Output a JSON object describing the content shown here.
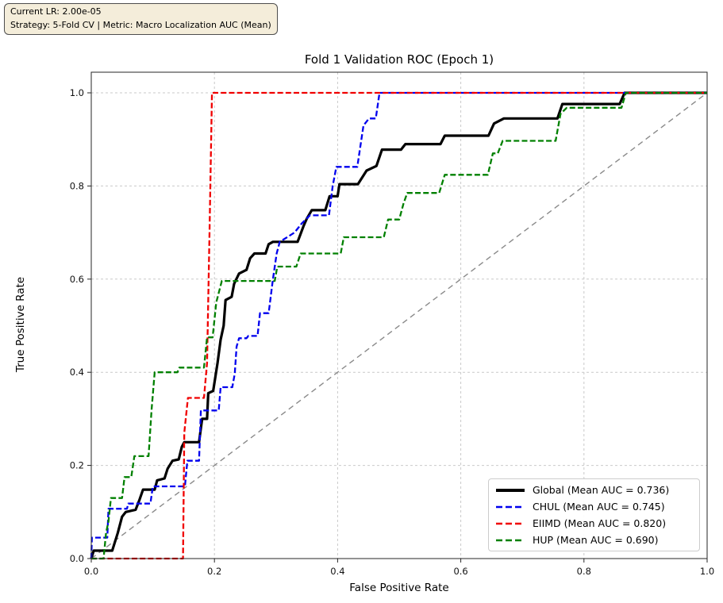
{
  "annotation": {
    "line1": "Current LR: 2.00e-05",
    "line2": "Strategy: 5-Fold CV | Metric: Macro Localization AUC (Mean)",
    "bg_color": "#f4edda",
    "border_color": "#4d4d4d"
  },
  "chart_data": {
    "type": "line",
    "subtype": "roc-step-curves",
    "title": "Fold 1 Validation ROC (Epoch 1)",
    "xlabel": "False Positive Rate",
    "ylabel": "True Positive Rate",
    "xlim": [
      0.0,
      1.0
    ],
    "ylim": [
      0.0,
      1.045
    ],
    "xticks": [
      0.0,
      0.2,
      0.4,
      0.6,
      0.8,
      1.0
    ],
    "yticks": [
      0.0,
      0.2,
      0.4,
      0.6,
      0.8,
      1.0
    ],
    "xtick_labels": [
      "0.0",
      "0.2",
      "0.4",
      "0.6",
      "0.8",
      "1.0"
    ],
    "ytick_labels": [
      "0.0",
      "0.2",
      "0.4",
      "0.6",
      "0.8",
      "1.0"
    ],
    "grid": true,
    "grid_color": "#c9c9c9",
    "spine_color": "#262626",
    "legend_position": "lower right",
    "chance_line": {
      "name": "chance-diagonal",
      "points": [
        [
          0,
          0
        ],
        [
          1,
          1
        ]
      ],
      "color": "#8a8a8a",
      "style": "dashed",
      "width": 1.4
    },
    "series": [
      {
        "name": "Global",
        "label": "Global (Mean AUC = 0.736)",
        "mean_auc": 0.736,
        "color": "#000000",
        "style": "solid",
        "width": 3.2,
        "points": [
          [
            0,
            0
          ],
          [
            0.004,
            0.017
          ],
          [
            0.034,
            0.017
          ],
          [
            0.043,
            0.055
          ],
          [
            0.05,
            0.09
          ],
          [
            0.056,
            0.1
          ],
          [
            0.072,
            0.105
          ],
          [
            0.078,
            0.125
          ],
          [
            0.084,
            0.148
          ],
          [
            0.103,
            0.148
          ],
          [
            0.107,
            0.168
          ],
          [
            0.119,
            0.172
          ],
          [
            0.124,
            0.193
          ],
          [
            0.132,
            0.21
          ],
          [
            0.142,
            0.213
          ],
          [
            0.147,
            0.24
          ],
          [
            0.151,
            0.25
          ],
          [
            0.175,
            0.25
          ],
          [
            0.18,
            0.3
          ],
          [
            0.188,
            0.3
          ],
          [
            0.19,
            0.355
          ],
          [
            0.198,
            0.36
          ],
          [
            0.205,
            0.42
          ],
          [
            0.21,
            0.47
          ],
          [
            0.215,
            0.5
          ],
          [
            0.218,
            0.555
          ],
          [
            0.228,
            0.562
          ],
          [
            0.232,
            0.59
          ],
          [
            0.24,
            0.612
          ],
          [
            0.252,
            0.62
          ],
          [
            0.258,
            0.645
          ],
          [
            0.265,
            0.655
          ],
          [
            0.283,
            0.655
          ],
          [
            0.288,
            0.675
          ],
          [
            0.295,
            0.68
          ],
          [
            0.335,
            0.68
          ],
          [
            0.345,
            0.715
          ],
          [
            0.35,
            0.73
          ],
          [
            0.358,
            0.748
          ],
          [
            0.38,
            0.748
          ],
          [
            0.387,
            0.778
          ],
          [
            0.4,
            0.778
          ],
          [
            0.403,
            0.804
          ],
          [
            0.433,
            0.804
          ],
          [
            0.447,
            0.833
          ],
          [
            0.463,
            0.843
          ],
          [
            0.472,
            0.878
          ],
          [
            0.503,
            0.878
          ],
          [
            0.51,
            0.89
          ],
          [
            0.567,
            0.89
          ],
          [
            0.574,
            0.908
          ],
          [
            0.645,
            0.908
          ],
          [
            0.654,
            0.934
          ],
          [
            0.67,
            0.945
          ],
          [
            0.757,
            0.945
          ],
          [
            0.765,
            0.976
          ],
          [
            0.858,
            0.976
          ],
          [
            0.866,
            1.0
          ],
          [
            1,
            1
          ]
        ]
      },
      {
        "name": "CHUL",
        "label": "CHUL (Mean AUC = 0.745)",
        "mean_auc": 0.745,
        "color": "#0000ee",
        "style": "dashed",
        "width": 2.3,
        "points": [
          [
            0,
            0
          ],
          [
            0.001,
            0.045
          ],
          [
            0.026,
            0.045
          ],
          [
            0.028,
            0.107
          ],
          [
            0.058,
            0.107
          ],
          [
            0.06,
            0.118
          ],
          [
            0.096,
            0.118
          ],
          [
            0.1,
            0.155
          ],
          [
            0.152,
            0.155
          ],
          [
            0.156,
            0.21
          ],
          [
            0.175,
            0.21
          ],
          [
            0.178,
            0.318
          ],
          [
            0.207,
            0.318
          ],
          [
            0.21,
            0.368
          ],
          [
            0.229,
            0.368
          ],
          [
            0.233,
            0.397
          ],
          [
            0.236,
            0.455
          ],
          [
            0.24,
            0.473
          ],
          [
            0.252,
            0.473
          ],
          [
            0.255,
            0.478
          ],
          [
            0.27,
            0.478
          ],
          [
            0.274,
            0.527
          ],
          [
            0.288,
            0.527
          ],
          [
            0.295,
            0.6
          ],
          [
            0.301,
            0.655
          ],
          [
            0.306,
            0.68
          ],
          [
            0.318,
            0.69
          ],
          [
            0.33,
            0.7
          ],
          [
            0.342,
            0.72
          ],
          [
            0.355,
            0.737
          ],
          [
            0.386,
            0.737
          ],
          [
            0.392,
            0.8
          ],
          [
            0.398,
            0.841
          ],
          [
            0.432,
            0.841
          ],
          [
            0.442,
            0.93
          ],
          [
            0.451,
            0.945
          ],
          [
            0.462,
            0.945
          ],
          [
            0.468,
            1.0
          ],
          [
            1,
            1
          ]
        ]
      },
      {
        "name": "EIIMD",
        "label": "EIIMD (Mean AUC = 0.820)",
        "mean_auc": 0.82,
        "color": "#f00000",
        "style": "dashed",
        "width": 2.3,
        "points": [
          [
            0,
            0
          ],
          [
            0.149,
            0
          ],
          [
            0.151,
            0.27
          ],
          [
            0.157,
            0.345
          ],
          [
            0.183,
            0.345
          ],
          [
            0.188,
            0.42
          ],
          [
            0.192,
            0.7
          ],
          [
            0.196,
            1.0
          ],
          [
            1,
            1
          ]
        ]
      },
      {
        "name": "HUP",
        "label": "HUP (Mean AUC = 0.690)",
        "mean_auc": 0.69,
        "color": "#008000",
        "style": "dashed",
        "width": 2.3,
        "points": [
          [
            0,
            0
          ],
          [
            0.02,
            0
          ],
          [
            0.024,
            0.055
          ],
          [
            0.028,
            0.08
          ],
          [
            0.032,
            0.13
          ],
          [
            0.05,
            0.13
          ],
          [
            0.054,
            0.175
          ],
          [
            0.065,
            0.175
          ],
          [
            0.07,
            0.22
          ],
          [
            0.093,
            0.22
          ],
          [
            0.098,
            0.32
          ],
          [
            0.103,
            0.4
          ],
          [
            0.14,
            0.4
          ],
          [
            0.143,
            0.41
          ],
          [
            0.183,
            0.41
          ],
          [
            0.188,
            0.475
          ],
          [
            0.197,
            0.475
          ],
          [
            0.203,
            0.55
          ],
          [
            0.212,
            0.596
          ],
          [
            0.298,
            0.596
          ],
          [
            0.302,
            0.627
          ],
          [
            0.333,
            0.627
          ],
          [
            0.34,
            0.655
          ],
          [
            0.405,
            0.655
          ],
          [
            0.41,
            0.69
          ],
          [
            0.475,
            0.69
          ],
          [
            0.482,
            0.728
          ],
          [
            0.5,
            0.728
          ],
          [
            0.507,
            0.762
          ],
          [
            0.513,
            0.785
          ],
          [
            0.565,
            0.785
          ],
          [
            0.574,
            0.824
          ],
          [
            0.644,
            0.824
          ],
          [
            0.652,
            0.87
          ],
          [
            0.66,
            0.87
          ],
          [
            0.668,
            0.897
          ],
          [
            0.754,
            0.897
          ],
          [
            0.762,
            0.955
          ],
          [
            0.772,
            0.968
          ],
          [
            0.861,
            0.968
          ],
          [
            0.868,
            1.0
          ],
          [
            1,
            1
          ]
        ]
      }
    ]
  }
}
